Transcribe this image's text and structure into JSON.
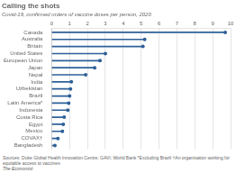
{
  "chart_data": {
    "type": "lollipop",
    "title": "Calling the shots",
    "subtitle": "Covid-19, confirmed orders of vaccine doses per person, 2020",
    "annotations": [
      "Sources: Duke Global Health Innovation Centre; GAVI; World Bank    *Excluding Brazil    †An organisation working for equitable access to vaccines",
      "The Economist"
    ],
    "categories": [
      "Canada",
      "Australia",
      "Britain",
      "United States",
      "European Union",
      "Japan",
      "Nepal",
      "India",
      "Uzbekistan",
      "Brazil",
      "Latin America*",
      "Indonesia",
      "Costa Rica",
      "Egypt",
      "Mexico",
      "COVAX†",
      "Bangladesh"
    ],
    "values": [
      9.7,
      5.2,
      5.1,
      3.0,
      2.7,
      2.4,
      1.9,
      1.1,
      1.05,
      1.0,
      0.95,
      0.9,
      0.7,
      0.65,
      0.6,
      0.35,
      0.18
    ],
    "color": "#2E6098",
    "orientation": "horizontal",
    "xlim": [
      0,
      10
    ],
    "xticks": [
      0,
      1,
      2,
      3,
      4,
      5,
      6,
      7,
      8,
      9,
      10
    ],
    "grid": true
  }
}
